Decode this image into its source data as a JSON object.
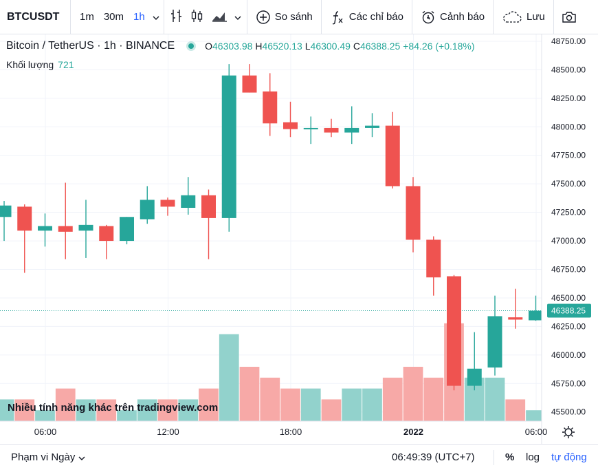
{
  "toolbar": {
    "symbol": "BTCUSDT",
    "intervals": [
      "1m",
      "30m",
      "1h"
    ],
    "active_interval": "1h",
    "compare_label": "So sánh",
    "indicators_label": "Các chỉ báo",
    "alert_label": "Cảnh báo",
    "save_label": "Lưu"
  },
  "legend": {
    "title": "Bitcoin / TetherUS · 1h · BINANCE",
    "o_key": "O",
    "o": "46303.98",
    "h_key": "H",
    "h": "46520.13",
    "l_key": "L",
    "l": "46300.49",
    "c_key": "C",
    "c": "46388.25",
    "change": "+84.26 (+0.18%)",
    "volume_label": "Khối lượng",
    "volume_value": "721"
  },
  "watermark": "Nhiều tính năng khác trên tradingview.com",
  "bottom": {
    "range_label": "Phạm vi Ngày",
    "clock": "06:49:39 (UTC+7)",
    "pct_label": "%",
    "log_label": "log",
    "auto_label": "tự động"
  },
  "colors": {
    "up": "#26a69a",
    "down": "#ef5350",
    "vol_up": "#92d2cc",
    "vol_down": "#f7a9a7",
    "accent": "#2962ff"
  },
  "chart_data": {
    "type": "candlestick",
    "ylim": [
      45420,
      48810
    ],
    "y_ticks": [
      "48750.00",
      "48500.00",
      "48250.00",
      "48000.00",
      "47750.00",
      "47500.00",
      "47250.00",
      "47000.00",
      "46750.00",
      "46500.00",
      "46250.00",
      "46000.00",
      "45750.00",
      "45500.00"
    ],
    "x_ticks": [
      {
        "label": "06:00",
        "index": 2
      },
      {
        "label": "12:00",
        "index": 8
      },
      {
        "label": "18:00",
        "index": 14
      },
      {
        "label": "2022",
        "index": 20
      },
      {
        "label": "06:00",
        "index": 26
      }
    ],
    "last_price": "46388.25",
    "candles": [
      {
        "o": 47210,
        "h": 47350,
        "l": 47000,
        "c": 47310,
        "v": 2
      },
      {
        "o": 47300,
        "h": 47320,
        "l": 46720,
        "c": 47090,
        "v": 2
      },
      {
        "o": 47090,
        "h": 47240,
        "l": 46950,
        "c": 47130,
        "v": 1
      },
      {
        "o": 47130,
        "h": 47510,
        "l": 46840,
        "c": 47080,
        "v": 3
      },
      {
        "o": 47090,
        "h": 47360,
        "l": 46850,
        "c": 47140,
        "v": 2
      },
      {
        "o": 47130,
        "h": 47140,
        "l": 46840,
        "c": 47000,
        "v": 2
      },
      {
        "o": 47000,
        "h": 47210,
        "l": 46970,
        "c": 47210,
        "v": 1
      },
      {
        "o": 47190,
        "h": 47480,
        "l": 47150,
        "c": 47360,
        "v": 2
      },
      {
        "o": 47360,
        "h": 47380,
        "l": 47220,
        "c": 47300,
        "v": 2
      },
      {
        "o": 47290,
        "h": 47560,
        "l": 47230,
        "c": 47400,
        "v": 2
      },
      {
        "o": 47400,
        "h": 47450,
        "l": 46840,
        "c": 47200,
        "v": 3
      },
      {
        "o": 47200,
        "h": 48550,
        "l": 47080,
        "c": 48450,
        "v": 8
      },
      {
        "o": 48450,
        "h": 48550,
        "l": 48300,
        "c": 48300,
        "v": 5
      },
      {
        "o": 48310,
        "h": 48470,
        "l": 47920,
        "c": 48030,
        "v": 4
      },
      {
        "o": 48040,
        "h": 48220,
        "l": 47910,
        "c": 47980,
        "v": 3
      },
      {
        "o": 47980,
        "h": 48090,
        "l": 47850,
        "c": 47990,
        "v": 3
      },
      {
        "o": 47990,
        "h": 48070,
        "l": 47910,
        "c": 47950,
        "v": 2
      },
      {
        "o": 47950,
        "h": 48180,
        "l": 47850,
        "c": 47990,
        "v": 3
      },
      {
        "o": 47990,
        "h": 48120,
        "l": 47910,
        "c": 48010,
        "v": 3
      },
      {
        "o": 48010,
        "h": 48130,
        "l": 47460,
        "c": 47480,
        "v": 4
      },
      {
        "o": 47480,
        "h": 47560,
        "l": 46900,
        "c": 47010,
        "v": 5
      },
      {
        "o": 47010,
        "h": 47040,
        "l": 46520,
        "c": 46680,
        "v": 4
      },
      {
        "o": 46690,
        "h": 46700,
        "l": 45690,
        "c": 45730,
        "v": 9
      },
      {
        "o": 45730,
        "h": 46200,
        "l": 45690,
        "c": 45880,
        "v": 4
      },
      {
        "o": 45890,
        "h": 46520,
        "l": 45820,
        "c": 46340,
        "v": 4
      },
      {
        "o": 46330,
        "h": 46580,
        "l": 46230,
        "c": 46310,
        "v": 2
      },
      {
        "o": 46304,
        "h": 46520,
        "l": 46300,
        "c": 46388,
        "v": 1
      }
    ]
  }
}
